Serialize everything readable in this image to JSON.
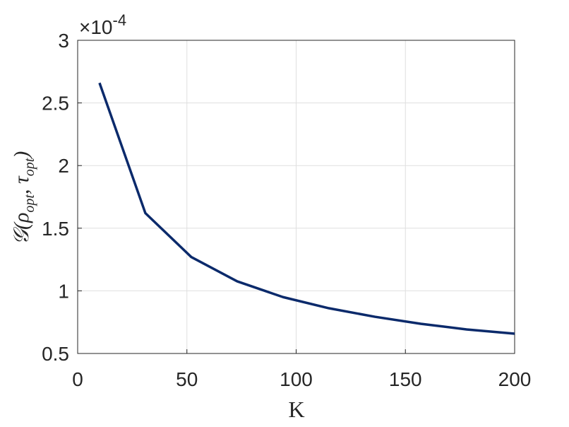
{
  "chart_data": {
    "type": "line",
    "x": [
      10,
      31,
      52,
      73,
      94,
      115,
      136,
      157,
      178,
      200
    ],
    "values": [
      2.66,
      1.62,
      1.27,
      1.076,
      0.95,
      0.861,
      0.793,
      0.737,
      0.692,
      0.658
    ],
    "color": "#0b2a6b",
    "xlim": [
      0,
      200
    ],
    "xticks": [
      0,
      50,
      100,
      150,
      200
    ],
    "ylim": [
      0.5,
      3
    ],
    "yticks": [
      0.5,
      1,
      1.5,
      2,
      2.5,
      3
    ],
    "grid": true,
    "xlabel": "K",
    "ylabel_parts": [
      "𝒢(ρ",
      "opt",
      ", τ",
      "opt",
      ")"
    ],
    "y_multiplier": {
      "base": "×10",
      "exponent": "-4"
    }
  }
}
